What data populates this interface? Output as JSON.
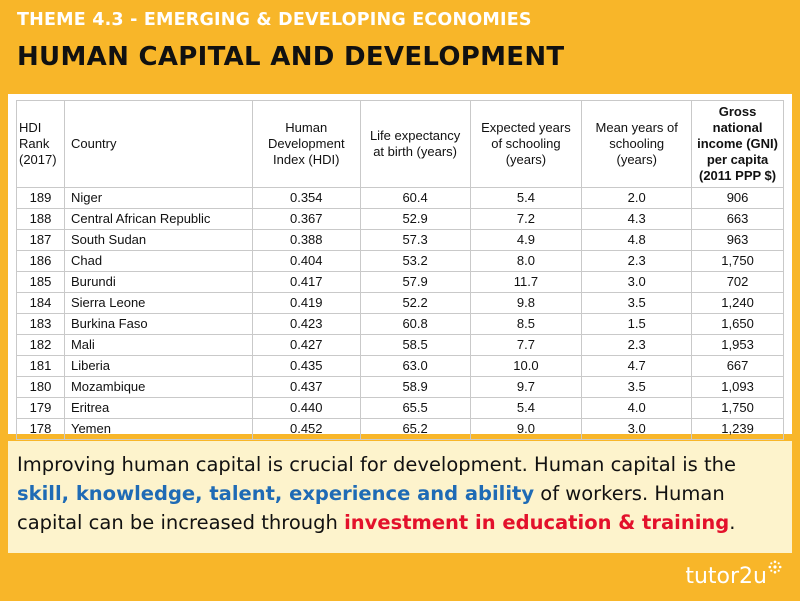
{
  "header": {
    "theme": "THEME 4.3 -  EMERGING & DEVELOPING ECONOMIES",
    "title": "HUMAN CAPITAL AND DEVELOPMENT"
  },
  "table": {
    "headers": {
      "rank": [
        "HDI",
        "Rank",
        "(2017)"
      ],
      "country": "Country",
      "hdi": [
        "Human",
        "Development",
        "Index (HDI)"
      ],
      "life": [
        "Life expectancy",
        "at birth (years)"
      ],
      "expected": [
        "Expected years",
        "of schooling",
        "(years)"
      ],
      "mean": [
        "Mean years of",
        "schooling",
        "(years)"
      ],
      "gni": [
        "Gross national",
        "income (GNI)",
        "per capita",
        "(2011 PPP $)"
      ]
    },
    "rows": [
      [
        "189",
        "Niger",
        "0.354",
        "60.4",
        "5.4",
        "2.0",
        "906"
      ],
      [
        "188",
        "Central African Republic",
        "0.367",
        "52.9",
        "7.2",
        "4.3",
        "663"
      ],
      [
        "187",
        "South Sudan",
        "0.388",
        "57.3",
        "4.9",
        "4.8",
        "963"
      ],
      [
        "186",
        "Chad",
        "0.404",
        "53.2",
        "8.0",
        "2.3",
        "1,750"
      ],
      [
        "185",
        "Burundi",
        "0.417",
        "57.9",
        "11.7",
        "3.0",
        "702"
      ],
      [
        "184",
        "Sierra Leone",
        "0.419",
        "52.2",
        "9.8",
        "3.5",
        "1,240"
      ],
      [
        "183",
        "Burkina Faso",
        "0.423",
        "60.8",
        "8.5",
        "1.5",
        "1,650"
      ],
      [
        "182",
        "Mali",
        "0.427",
        "58.5",
        "7.7",
        "2.3",
        "1,953"
      ],
      [
        "181",
        "Liberia",
        "0.435",
        "63.0",
        "10.0",
        "4.7",
        "667"
      ],
      [
        "180",
        "Mozambique",
        "0.437",
        "58.9",
        "9.7",
        "3.5",
        "1,093"
      ],
      [
        "179",
        "Eritrea",
        "0.440",
        "65.5",
        "5.4",
        "4.0",
        "1,750"
      ],
      [
        "178",
        "Yemen",
        "0.452",
        "65.2",
        "9.0",
        "3.0",
        "1,239"
      ]
    ]
  },
  "info": {
    "part1": "Improving human capital is crucial for development. Human capital is the ",
    "highlight1": "skill, knowledge, talent, experience and ability",
    "part2": " of workers. Human capital can be increased through ",
    "highlight2": "investment in education & training",
    "part3": "."
  },
  "logo": {
    "text": "tutor2u",
    "icon": "sunburst-icon"
  },
  "colors": {
    "background": "#f8b629",
    "info_panel": "#fdf3cc",
    "highlight_blue": "#1f6bb5",
    "highlight_red": "#e3112b"
  }
}
